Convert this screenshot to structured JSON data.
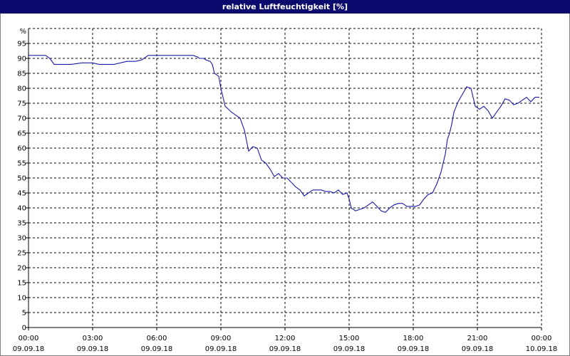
{
  "window": {
    "title": "relative Luftfeuchtigkeit [%]"
  },
  "colors": {
    "title_bar": "#0b0b6e",
    "title_text": "#ffffff",
    "line": "#1a1aa6",
    "grid": "#000000",
    "background": "#ffffff"
  },
  "chart_data": {
    "type": "line",
    "title": "relative Luftfeuchtigkeit [%]",
    "ylabel": "%",
    "xlabel": "",
    "ylim": [
      0,
      100
    ],
    "y_ticks": [
      0,
      5,
      10,
      15,
      20,
      25,
      30,
      35,
      40,
      45,
      50,
      55,
      60,
      65,
      70,
      75,
      80,
      85,
      90,
      95
    ],
    "x_range_hours": [
      0,
      24
    ],
    "x_ticks": [
      {
        "hour": 0,
        "time": "00:00",
        "date": "09.09.18"
      },
      {
        "hour": 3,
        "time": "03:00",
        "date": "09.09.18"
      },
      {
        "hour": 6,
        "time": "06:00",
        "date": "09.09.18"
      },
      {
        "hour": 9,
        "time": "09:00",
        "date": "09.09.18"
      },
      {
        "hour": 12,
        "time": "12:00",
        "date": "09.09.18"
      },
      {
        "hour": 15,
        "time": "15:00",
        "date": "09.09.18"
      },
      {
        "hour": 18,
        "time": "18:00",
        "date": "09.09.18"
      },
      {
        "hour": 21,
        "time": "21:00",
        "date": "09.09.18"
      },
      {
        "hour": 24,
        "time": "00:00",
        "date": "10.09.18"
      }
    ],
    "grid": true,
    "series": [
      {
        "name": "",
        "x": [
          0.0,
          0.4,
          0.8,
          1.0,
          1.2,
          1.5,
          2.0,
          2.5,
          3.0,
          3.3,
          3.6,
          4.0,
          4.3,
          4.6,
          4.8,
          5.0,
          5.3,
          5.6,
          6.0,
          6.3,
          6.6,
          6.9,
          7.2,
          7.5,
          7.7,
          7.9,
          8.0,
          8.2,
          8.3,
          8.5,
          8.6,
          8.7,
          8.8,
          8.9,
          9.0,
          9.2,
          9.5,
          9.7,
          9.9,
          10.0,
          10.1,
          10.3,
          10.5,
          10.7,
          10.9,
          11.1,
          11.3,
          11.5,
          11.7,
          11.9,
          12.1,
          12.3,
          12.5,
          12.7,
          12.9,
          13.1,
          13.3,
          13.5,
          13.7,
          13.9,
          14.1,
          14.3,
          14.5,
          14.7,
          14.9,
          15.0,
          15.1,
          15.3,
          15.5,
          15.7,
          15.9,
          16.1,
          16.3,
          16.5,
          16.7,
          16.9,
          17.1,
          17.3,
          17.5,
          17.7,
          17.9,
          18.1,
          18.3,
          18.5,
          18.7,
          18.9,
          19.1,
          19.3,
          19.5,
          19.6,
          19.7,
          19.8,
          19.9,
          20.1,
          20.3,
          20.5,
          20.7,
          20.8,
          20.9,
          21.1,
          21.3,
          21.5,
          21.7,
          21.9,
          22.1,
          22.3,
          22.5,
          22.7,
          22.9,
          23.1,
          23.3,
          23.5,
          23.7,
          23.9
        ],
        "values": [
          91,
          91,
          91,
          90,
          88,
          88,
          88,
          88.5,
          88.5,
          88,
          88,
          88,
          88.5,
          89,
          89,
          89,
          89.5,
          91,
          91,
          91,
          91,
          91,
          91,
          91,
          91,
          90.5,
          90,
          90,
          89.5,
          89,
          88,
          85,
          84.5,
          84,
          80,
          74,
          72,
          71,
          70,
          68,
          66,
          59,
          60.5,
          60,
          56,
          55,
          53,
          50.5,
          51.5,
          50,
          50,
          48.5,
          47,
          46,
          44,
          45,
          46,
          46,
          46,
          45.5,
          45.5,
          45,
          46,
          44.5,
          45,
          43,
          40,
          39,
          39.5,
          40,
          41,
          42,
          40.5,
          39,
          38.5,
          40,
          41,
          41.5,
          41.5,
          40.5,
          40.5,
          40.5,
          41,
          43,
          44.5,
          45,
          48,
          52,
          58,
          63,
          65,
          68,
          72,
          75.5,
          78,
          80.5,
          80,
          77,
          74,
          73,
          74,
          72.5,
          70,
          72,
          74,
          76.5,
          76,
          74.5,
          75,
          76,
          77,
          75.5,
          77,
          77
        ]
      }
    ]
  }
}
